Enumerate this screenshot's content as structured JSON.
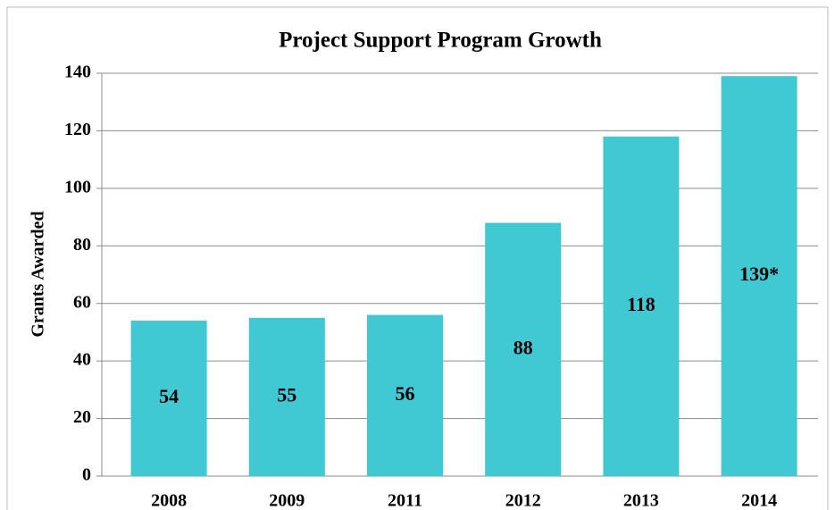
{
  "chart_data": {
    "type": "bar",
    "title": "Project Support Program Growth",
    "y_label": "Grants Awarded",
    "categories": [
      "2008",
      "2009",
      "2011",
      "2012",
      "2013",
      "2014"
    ],
    "values": [
      54,
      55,
      56,
      88,
      118,
      139
    ],
    "value_labels": [
      "54",
      "55",
      "56",
      "88",
      "118",
      "139*"
    ],
    "color": "#40c8d3",
    "ylim": [
      0,
      140
    ],
    "yticks": [
      0,
      20,
      40,
      60,
      80,
      100,
      120,
      140
    ],
    "grid": true
  }
}
